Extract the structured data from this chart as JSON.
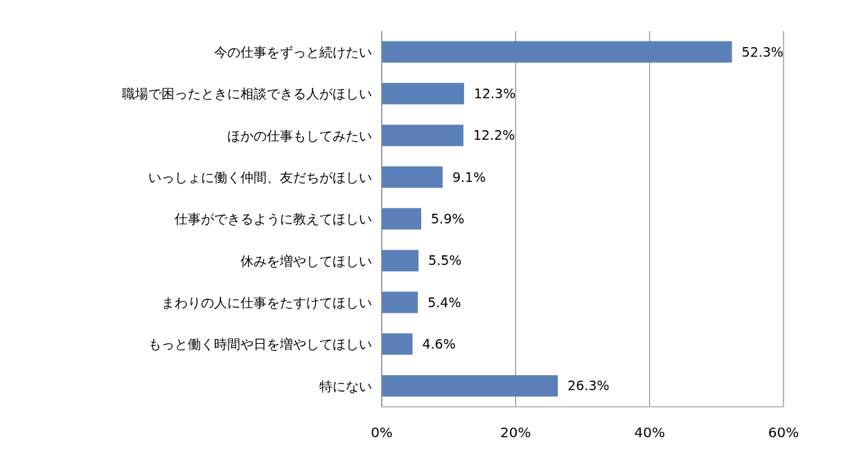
{
  "chart_data": {
    "type": "bar",
    "orientation": "horizontal",
    "categories": [
      "今の仕事をずっと続けたい",
      "職場で困ったときに相談できる人がほしい",
      "ほかの仕事もしてみたい",
      "いっしょに働く仲間、友だちがほしい",
      "仕事ができるように教えてほしい",
      "休みを増やしてほしい",
      "まわりの人に仕事をたすけてほしい",
      "もっと働く時間や日を増やしてほしい",
      "特にない"
    ],
    "values": [
      52.3,
      12.3,
      12.2,
      9.1,
      5.9,
      5.5,
      5.4,
      4.6,
      26.3
    ],
    "value_labels": [
      "52.3%",
      "12.3%",
      "12.2%",
      "9.1%",
      "5.9%",
      "5.5%",
      "5.4%",
      "4.6%",
      "26.3%"
    ],
    "color": "#5b80b9",
    "xlim": [
      0,
      60
    ],
    "xticks": [
      {
        "value": 0,
        "label": "0%"
      },
      {
        "value": 20,
        "label": "20%"
      },
      {
        "value": 40,
        "label": "40%"
      },
      {
        "value": 60,
        "label": "60%"
      }
    ],
    "grid": "x"
  }
}
